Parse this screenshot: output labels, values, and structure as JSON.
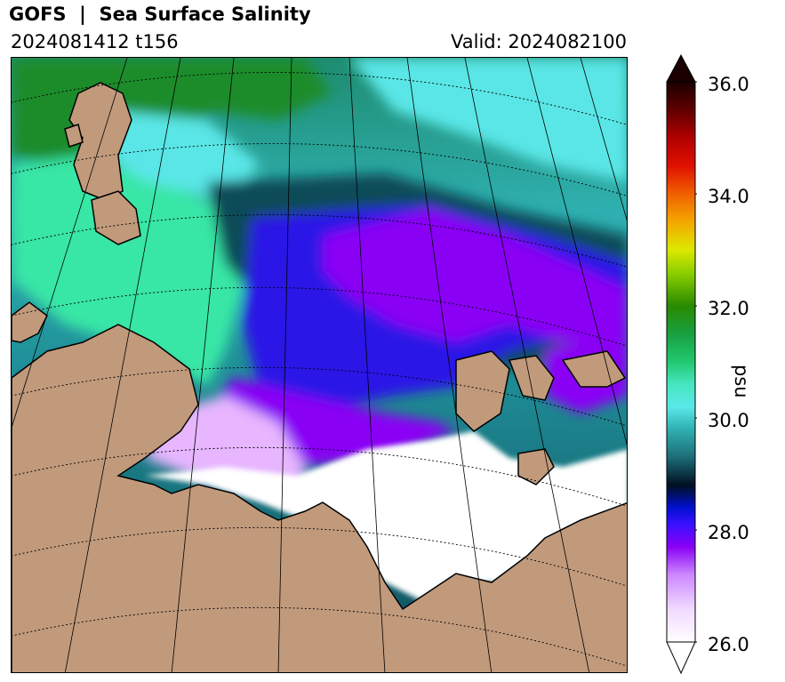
{
  "header": {
    "title": "GOFS  |  Sea Surface Salinity",
    "run": "2024081412 t156",
    "valid": "Valid: 2024082100"
  },
  "map": {
    "variable": "Sea Surface Salinity",
    "units": "psu",
    "colors": {
      "land": "#c19a7c",
      "fresh_white": "#ffffff",
      "light_violet": "#e7b6ff",
      "violet": "#8a00f5",
      "blue": "#2b14e6",
      "dark_teal": "#0e4b59",
      "teal": "#1f8f98",
      "cyan": "#5ae6e6",
      "mint": "#38e6a6",
      "green": "#1c8c2c",
      "graticule": "#000000"
    }
  },
  "colorbar": {
    "label": "psu",
    "min": 26.0,
    "max": 36.0,
    "extend": "both",
    "ticks": [
      "26.0",
      "28.0",
      "30.0",
      "32.0",
      "34.0",
      "36.0"
    ],
    "tick_values": [
      26,
      28,
      30,
      32,
      34,
      36
    ],
    "gradient_stops": [
      {
        "v": 26.0,
        "c": "#ffffff"
      },
      {
        "v": 26.6,
        "c": "#f0d8ff"
      },
      {
        "v": 27.2,
        "c": "#cc88ff"
      },
      {
        "v": 27.7,
        "c": "#8a00f5"
      },
      {
        "v": 28.1,
        "c": "#3a10ff"
      },
      {
        "v": 28.4,
        "c": "#0010d0"
      },
      {
        "v": 28.8,
        "c": "#001020"
      },
      {
        "v": 29.3,
        "c": "#1d6d78"
      },
      {
        "v": 29.8,
        "c": "#2fb0b0"
      },
      {
        "v": 30.2,
        "c": "#5ae8e8"
      },
      {
        "v": 30.6,
        "c": "#46e6c0"
      },
      {
        "v": 31.0,
        "c": "#22c870"
      },
      {
        "v": 31.5,
        "c": "#18a040"
      },
      {
        "v": 32.0,
        "c": "#2a8a00"
      },
      {
        "v": 32.6,
        "c": "#8ed000"
      },
      {
        "v": 33.0,
        "c": "#dce800"
      },
      {
        "v": 33.5,
        "c": "#f4a800"
      },
      {
        "v": 34.0,
        "c": "#f06000"
      },
      {
        "v": 34.5,
        "c": "#e01000"
      },
      {
        "v": 35.0,
        "c": "#b00000"
      },
      {
        "v": 35.5,
        "c": "#600000"
      },
      {
        "v": 36.0,
        "c": "#1a0000"
      }
    ]
  }
}
